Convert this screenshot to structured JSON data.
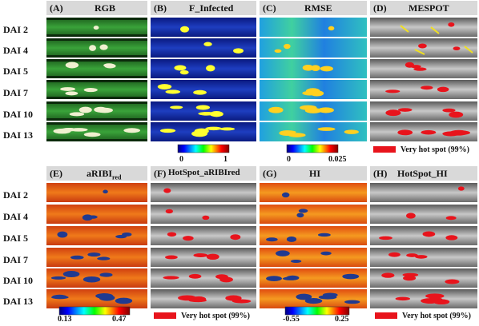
{
  "top": {
    "headers": [
      {
        "letter": "(A)",
        "title": "RGB"
      },
      {
        "letter": "(B)",
        "title": "F_Infected"
      },
      {
        "letter": "(C)",
        "title": "RMSE"
      },
      {
        "letter": "(D)",
        "title": "MESPOT"
      }
    ],
    "rows": [
      "DAI 2",
      "DAI 4",
      "DAI 5",
      "DAI 7",
      "DAI 10",
      "DAI 13"
    ],
    "colorbar_b": {
      "min": "0",
      "max": "1"
    },
    "colorbar_c": {
      "min": "0",
      "max": "0.025"
    },
    "legend_d": "Very hot spot (99%)"
  },
  "bottom": {
    "headers": [
      {
        "letter": "(E)",
        "title": "aRIBI",
        "sub": "red"
      },
      {
        "letter": "(F)",
        "title": "HotSpot_aRIBIred"
      },
      {
        "letter": "(G)",
        "title": "HI"
      },
      {
        "letter": "(H)",
        "title": "HotSpot_HI"
      }
    ],
    "rows": [
      "DAI 2",
      "DAI 4",
      "DAI 5",
      "DAI 7",
      "DAI 10",
      "DAI 13"
    ],
    "colorbar_e": {
      "min": "0.13",
      "max": "0.47"
    },
    "colorbar_g": {
      "min": "-0.55",
      "max": "0.25"
    },
    "legend_f": "Very hot spot (99%)",
    "legend_h": "Very hot spot (99%)"
  },
  "colors": {
    "header_bg": "#d9d9d9",
    "hotspot_red": "#e8141c",
    "rgb_green": "#2f8f2f",
    "infected_blue": "#1428a0",
    "gray_leaf": "#b8b8b8"
  }
}
